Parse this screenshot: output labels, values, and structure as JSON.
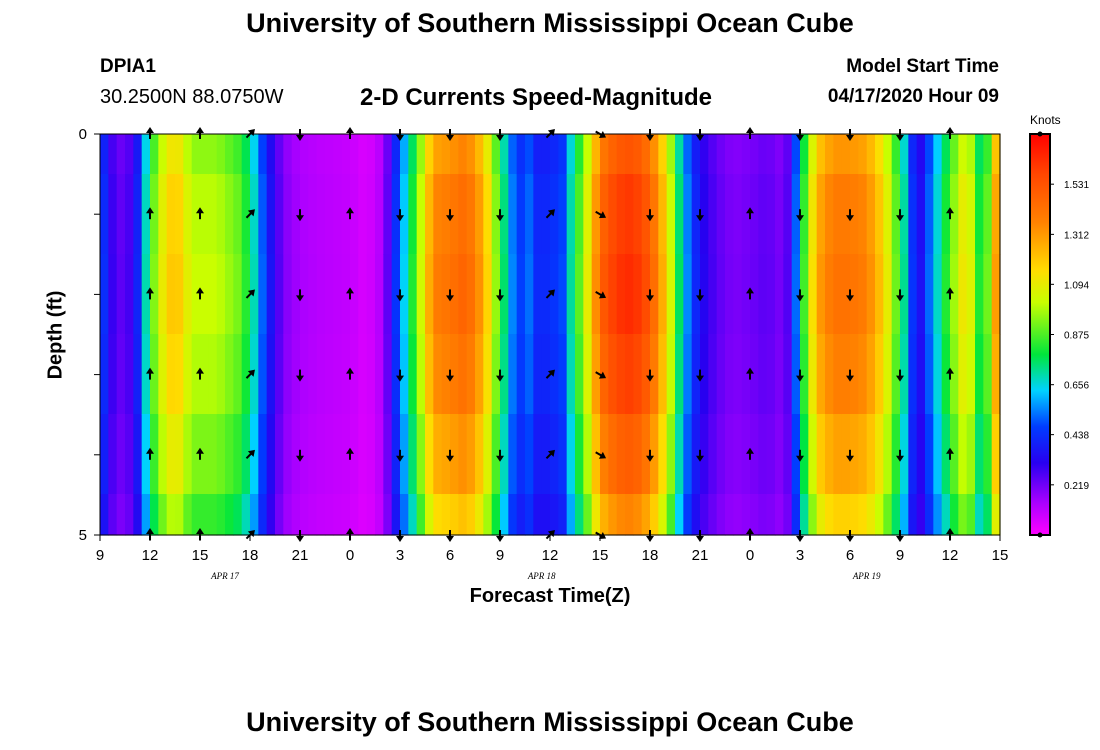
{
  "header": {
    "title": "University of Southern Mississippi Ocean Cube",
    "station_id": "DPIA1",
    "station_coords": "30.2500N 88.0750W",
    "plot_title": "2-D Currents Speed-Magnitude",
    "model_label": "Model Start Time",
    "model_time": "04/17/2020 Hour 09"
  },
  "footer": {
    "title": "University of Southern Mississippi Ocean Cube"
  },
  "chart_data": {
    "type": "heatmap",
    "title": "2-D Currents Speed-Magnitude",
    "xlabel": "Forecast Time(Z)",
    "ylabel": "Depth (ft)",
    "x_hours": [
      0,
      3,
      6,
      9,
      12,
      15,
      18,
      21,
      24,
      27,
      30,
      33,
      36,
      39,
      42,
      45,
      48,
      51,
      54
    ],
    "x_tick_labels": [
      "9",
      "12",
      "15",
      "18",
      "21",
      "0",
      "3",
      "6",
      "9",
      "12",
      "15",
      "18",
      "21",
      "0",
      "3",
      "6",
      "9",
      "12",
      "15"
    ],
    "date_labels": [
      {
        "label": "APR 17",
        "hour": 7.5
      },
      {
        "label": "APR 18",
        "hour": 26.5
      },
      {
        "label": "APR 19",
        "hour": 46
      }
    ],
    "depth_ticks": [
      0,
      1,
      2,
      3,
      4,
      5
    ],
    "depth_tick_labels": [
      "0",
      "",
      "",
      "",
      "",
      "5"
    ],
    "ylim": [
      0,
      5
    ],
    "colorbar": {
      "units": "Knots",
      "min": 0.0,
      "max": 1.75,
      "tick_values": [
        0.219,
        0.438,
        0.656,
        0.875,
        1.094,
        1.312,
        1.531
      ],
      "tick_labels": [
        "0.219",
        "0.438",
        "0.656",
        "0.875",
        "1.094",
        "1.312",
        "1.531"
      ]
    },
    "speed_profile_hours": [
      0,
      0.5,
      1.5,
      2.2,
      2.6,
      3.0,
      3.5,
      4.5,
      5.5,
      7,
      8.3,
      9,
      10,
      11,
      12,
      13,
      14,
      15,
      16,
      17,
      18,
      18.5,
      19,
      20,
      21,
      22,
      23,
      24,
      25,
      26,
      26.5,
      27,
      27.5,
      28,
      29,
      29.5,
      30,
      31,
      32,
      33,
      34,
      35,
      36,
      37,
      38,
      39,
      40,
      41,
      41.5,
      42,
      43,
      44,
      45,
      46,
      47,
      48,
      48.5,
      49,
      50,
      51,
      52,
      53,
      53.7
    ],
    "speed_profile_knots": [
      0.55,
      0.32,
      0.22,
      0.38,
      0.62,
      0.82,
      1.05,
      1.25,
      1.02,
      1.02,
      0.92,
      0.78,
      0.42,
      0.2,
      0.14,
      0.12,
      0.11,
      0.1,
      0.06,
      0.14,
      0.55,
      0.72,
      0.92,
      1.38,
      1.42,
      1.48,
      1.28,
      0.85,
      0.45,
      0.55,
      0.3,
      0.55,
      0.35,
      0.62,
      0.98,
      1.2,
      1.48,
      1.62,
      1.65,
      1.52,
      1.18,
      0.62,
      0.35,
      0.25,
      0.2,
      0.22,
      0.25,
      0.2,
      0.32,
      0.72,
      1.28,
      1.42,
      1.42,
      1.38,
      1.18,
      0.82,
      0.62,
      0.28,
      0.6,
      0.9,
      1.18,
      0.7,
      1.3
    ],
    "depth_speed_factor": [
      0.93,
      0.98,
      1.0,
      0.97,
      0.91,
      0.83
    ],
    "vector_depths": [
      0,
      1,
      2,
      3,
      4,
      5
    ],
    "vectors": [
      {
        "hour": 3,
        "dir": "north"
      },
      {
        "hour": 6,
        "dir": "north"
      },
      {
        "hour": 9,
        "dir": "northeast"
      },
      {
        "hour": 12,
        "dir": "south"
      },
      {
        "hour": 15,
        "dir": "north"
      },
      {
        "hour": 18,
        "dir": "south"
      },
      {
        "hour": 21,
        "dir": "south"
      },
      {
        "hour": 24,
        "dir": "south"
      },
      {
        "hour": 27,
        "dir": "northeast"
      },
      {
        "hour": 30,
        "dir": "southeast"
      },
      {
        "hour": 33,
        "dir": "south"
      },
      {
        "hour": 36,
        "dir": "south"
      },
      {
        "hour": 39,
        "dir": "north"
      },
      {
        "hour": 42,
        "dir": "south"
      },
      {
        "hour": 45,
        "dir": "south"
      },
      {
        "hour": 48,
        "dir": "south"
      },
      {
        "hour": 51,
        "dir": "north"
      }
    ]
  }
}
